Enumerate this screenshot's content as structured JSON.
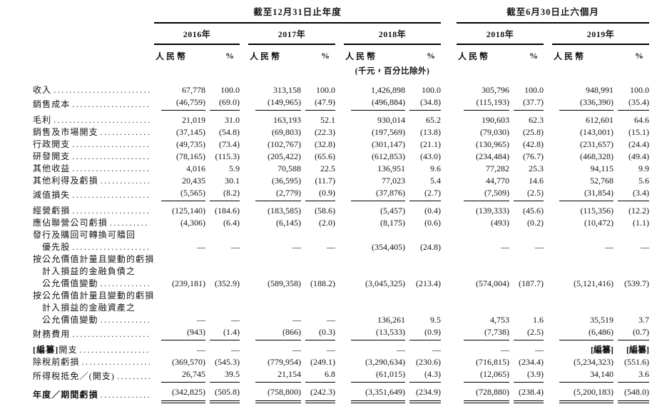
{
  "table": {
    "section_headers": {
      "annual": "截至12月31日止年度",
      "interim": "截至6月30日止六個月"
    },
    "year_headers": [
      "2016年",
      "2017年",
      "2018年",
      "2018年",
      "2019年"
    ],
    "col_headers": {
      "rmb": "人民幣",
      "pct": "%"
    },
    "units_note": "(千元，百分比除外)",
    "rows": [
      {
        "lines": [
          "收入"
        ],
        "values": [
          "67,778",
          "100.0",
          "313,158",
          "100.0",
          "1,426,898",
          "100.0",
          "305,796",
          "100.0",
          "948,991",
          "100.0"
        ]
      },
      {
        "lines": [
          "銷售成本"
        ],
        "values": [
          "(46,759)",
          "(69.0)",
          "(149,965)",
          "(47.9)",
          "(496,884)",
          "(34.8)",
          "(115,193)",
          "(37.7)",
          "(336,390)",
          "(35.4)"
        ],
        "rule": true
      },
      {
        "lines": [
          "毛利"
        ],
        "values": [
          "21,019",
          "31.0",
          "163,193",
          "52.1",
          "930,014",
          "65.2",
          "190,603",
          "62.3",
          "612,601",
          "64.6"
        ]
      },
      {
        "lines": [
          "銷售及市場開支"
        ],
        "values": [
          "(37,145)",
          "(54.8)",
          "(69,803)",
          "(22.3)",
          "(197,569)",
          "(13.8)",
          "(79,030)",
          "(25.8)",
          "(143,001)",
          "(15.1)"
        ]
      },
      {
        "lines": [
          "行政開支"
        ],
        "values": [
          "(49,735)",
          "(73.4)",
          "(102,767)",
          "(32.8)",
          "(301,147)",
          "(21.1)",
          "(130,965)",
          "(42.8)",
          "(231,657)",
          "(24.4)"
        ]
      },
      {
        "lines": [
          "研發開支"
        ],
        "values": [
          "(78,165)",
          "(115.3)",
          "(205,422)",
          "(65.6)",
          "(612,853)",
          "(43.0)",
          "(234,484)",
          "(76.7)",
          "(468,328)",
          "(49.4)"
        ]
      },
      {
        "lines": [
          "其他收益"
        ],
        "values": [
          "4,016",
          "5.9",
          "70,588",
          "22.5",
          "136,951",
          "9.6",
          "77,282",
          "25.3",
          "94,115",
          "9.9"
        ]
      },
      {
        "lines": [
          "其他利得及虧損"
        ],
        "values": [
          "20,435",
          "30.1",
          "(36,595)",
          "(11.7)",
          "77,023",
          "5.4",
          "44,770",
          "14.6",
          "52,768",
          "5.6"
        ]
      },
      {
        "lines": [
          "減值損失"
        ],
        "values": [
          "(5,565)",
          "(8.2)",
          "(2,779)",
          "(0.9)",
          "(37,876)",
          "(2.7)",
          "(7,509)",
          "(2.5)",
          "(31,854)",
          "(3.4)"
        ],
        "rule": true
      },
      {
        "lines": [
          "經營虧損"
        ],
        "values": [
          "(125,140)",
          "(184.6)",
          "(183,585)",
          "(58.6)",
          "(5,457)",
          "(0.4)",
          "(139,333)",
          "(45.6)",
          "(115,356)",
          "(12.2)"
        ]
      },
      {
        "lines": [
          "應佔聯營公司虧損"
        ],
        "values": [
          "(4,306)",
          "(6.4)",
          "(6,145)",
          "(2.0)",
          "(8,175)",
          "(0.6)",
          "(493)",
          "(0.2)",
          "(10,472)",
          "(1.1)"
        ]
      },
      {
        "lines": [
          "發行及購回可轉換可贖回",
          "優先股"
        ],
        "values": [
          "—",
          "—",
          "—",
          "—",
          "(354,405)",
          "(24.8)",
          "—",
          "—",
          "—",
          "—"
        ]
      },
      {
        "lines": [
          "按公允價值計量且變動的虧損",
          "計入損益的金融負債之",
          "公允價值變動"
        ],
        "values": [
          "(239,181)",
          "(352.9)",
          "(589,358)",
          "(188.2)",
          "(3,045,325)",
          "(213.4)",
          "(574,004)",
          "(187.7)",
          "(5,121,416)",
          "(539.7)"
        ]
      },
      {
        "lines": [
          "按公允價值計量且變動的虧損",
          "計入損益的金融資產之",
          "公允價值變動"
        ],
        "values": [
          "—",
          "—",
          "—",
          "—",
          "136,261",
          "9.5",
          "4,753",
          "1.6",
          "35,519",
          "3.7"
        ]
      },
      {
        "lines": [
          "財務費用"
        ],
        "values": [
          "(943)",
          "(1.4)",
          "(866)",
          "(0.3)",
          "(13,533)",
          "(0.9)",
          "(7,738)",
          "(2.5)",
          "(6,486)",
          "(0.7)"
        ],
        "rule": true
      },
      {
        "lines": [
          "[編纂]開支"
        ],
        "values": [
          "—",
          "—",
          "—",
          "—",
          "—",
          "—",
          "—",
          "—",
          "[編纂]",
          "[編纂]"
        ]
      },
      {
        "lines": [
          "除稅前虧損"
        ],
        "values": [
          "(369,570)",
          "(545.3)",
          "(779,954)",
          "(249.1)",
          "(3,290,634)",
          "(230.6)",
          "(716,815)",
          "(234.4)",
          "(5,234,323)",
          "(551.6)"
        ]
      },
      {
        "lines": [
          "所得稅抵免／(開支)"
        ],
        "values": [
          "26,745",
          "39.5",
          "21,154",
          "6.8",
          "(61,015)",
          "(4.3)",
          "(12,065)",
          "(3.9)",
          "34,140",
          "3.6"
        ],
        "rule": true
      },
      {
        "lines": [
          "年度／期間虧損"
        ],
        "values": [
          "(342,825)",
          "(505.8)",
          "(758,800)",
          "(242.3)",
          "(3,351,649)",
          "(234.9)",
          "(728,880)",
          "(238.4)",
          "(5,200,183)",
          "(548.0)"
        ],
        "bold": true,
        "dbl": true
      }
    ]
  }
}
